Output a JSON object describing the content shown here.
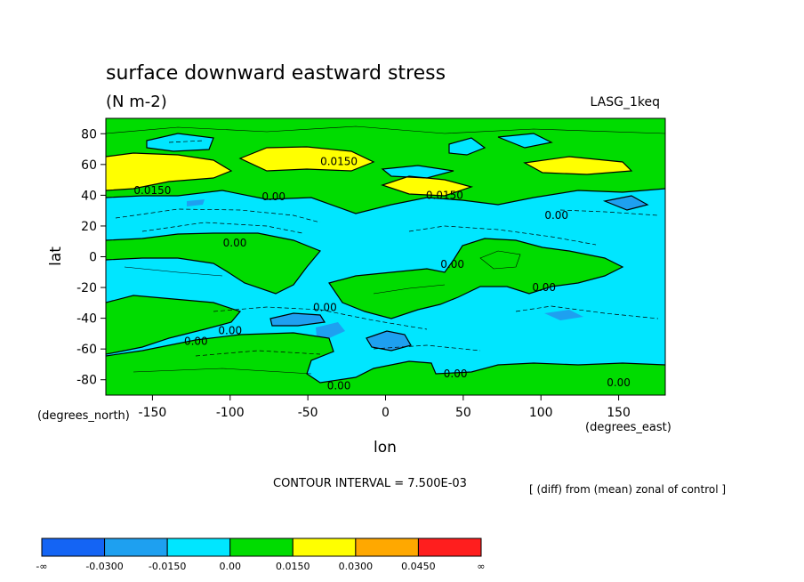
{
  "chart_data": {
    "type": "heatmap",
    "title": "surface downward eastward stress",
    "units": "(N m-2)",
    "dataset": "LASG_1keq",
    "xlabel": "lon",
    "ylabel": "lat",
    "x_unit_label": "(degrees_east)",
    "y_unit_label": "(degrees_north)",
    "xlim": [
      -180,
      180
    ],
    "ylim": [
      -90,
      90
    ],
    "x_ticks": [
      -150,
      -100,
      -50,
      0,
      50,
      100,
      150
    ],
    "y_ticks": [
      80,
      60,
      40,
      20,
      0,
      -20,
      -40,
      -60,
      -80
    ],
    "contour_interval_text": "CONTOUR INTERVAL = 7.500E-03",
    "subtitle_note": "[ (diff) from (mean) zonal of control ]",
    "colorbar": {
      "labels": [
        "-∞",
        "-0.0300",
        "-0.0150",
        "0.00",
        "0.0150",
        "0.0300",
        "0.0450",
        "∞"
      ],
      "colors": [
        "#1464f4",
        "#1ea0f0",
        "#00e6ff",
        "#00dc00",
        "#ffff00",
        "#ffa800",
        "#ff1e1e"
      ]
    },
    "bands": [
      {
        "lat_min": 66,
        "lat_max": 90,
        "level": "0.00 to 0.0150"
      },
      {
        "lat_min": 55,
        "lat_max": 66,
        "level": "0.0150 to 0.0300 (partial)"
      },
      {
        "lat_min": 35,
        "lat_max": 55,
        "level": "0.00 to 0.0150"
      },
      {
        "lat_min": -60,
        "lat_max": 35,
        "level": "-0.0150 to 0.00"
      },
      {
        "lat_min": -90,
        "lat_max": -60,
        "level": "0.00 to 0.0150"
      }
    ],
    "contour_labels": [
      {
        "text": "0.0150",
        "lon": -30,
        "lat": 62
      },
      {
        "text": "0.0150",
        "lon": -150,
        "lat": 43
      },
      {
        "text": "0.0150",
        "lon": 38,
        "lat": 40
      },
      {
        "text": "0.00",
        "lon": -72,
        "lat": 39
      },
      {
        "text": "0.00",
        "lon": 110,
        "lat": 27
      },
      {
        "text": "0.00",
        "lon": -97,
        "lat": 9
      },
      {
        "text": "0.00",
        "lon": 43,
        "lat": -5
      },
      {
        "text": "0.00",
        "lon": 102,
        "lat": -20
      },
      {
        "text": "0.00",
        "lon": -39,
        "lat": -33
      },
      {
        "text": "0.00",
        "lon": -100,
        "lat": -48
      },
      {
        "text": "0.00",
        "lon": -122,
        "lat": -55
      },
      {
        "text": "0.00",
        "lon": 45,
        "lat": -76
      },
      {
        "text": "0.00",
        "lon": -30,
        "lat": -84
      },
      {
        "text": "0.00",
        "lon": 150,
        "lat": -82
      }
    ]
  }
}
